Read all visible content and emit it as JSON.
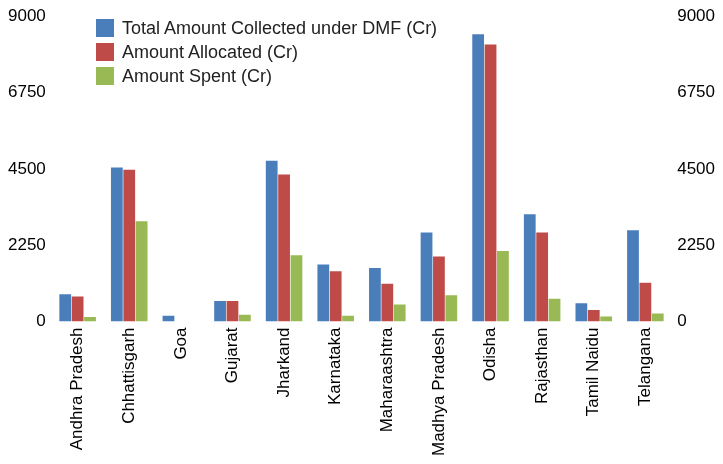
{
  "chart_data": {
    "type": "bar",
    "categories": [
      "Andhra Pradesh",
      "Chhattisgarh",
      "Goa",
      "Gujarat",
      "Jharkand",
      "Karnataka",
      "Maharaashtra",
      "Madhya Pradesh",
      "Odisha",
      "Rajasthan",
      "Tamil Naidu",
      "Telangana"
    ],
    "series": [
      {
        "name": "Total Amount Collected under DMF (Cr)",
        "color": "#4a7ebb",
        "values": [
          806,
          4536,
          168,
          605,
          4740,
          1680,
          1580,
          2620,
          8470,
          3160,
          540,
          2690
        ]
      },
      {
        "name": "Amount Allocated (Cr)",
        "color": "#be4b48",
        "values": [
          740,
          4470,
          0,
          605,
          4335,
          1480,
          1110,
          1915,
          8165,
          2620,
          340,
          1140
        ]
      },
      {
        "name": "Amount Spent (Cr)",
        "color": "#98b954",
        "values": [
          134,
          2957,
          0,
          200,
          1950,
          168,
          500,
          770,
          2080,
          670,
          150,
          235
        ]
      }
    ],
    "ylim": [
      0,
      9000
    ],
    "yticks": [
      0,
      2250,
      4500,
      6750,
      9000
    ],
    "y2lim": [
      0,
      9000
    ],
    "y2ticks": [
      0,
      2250,
      4500,
      6750,
      9000
    ],
    "grid": false,
    "legend": "upper left"
  }
}
